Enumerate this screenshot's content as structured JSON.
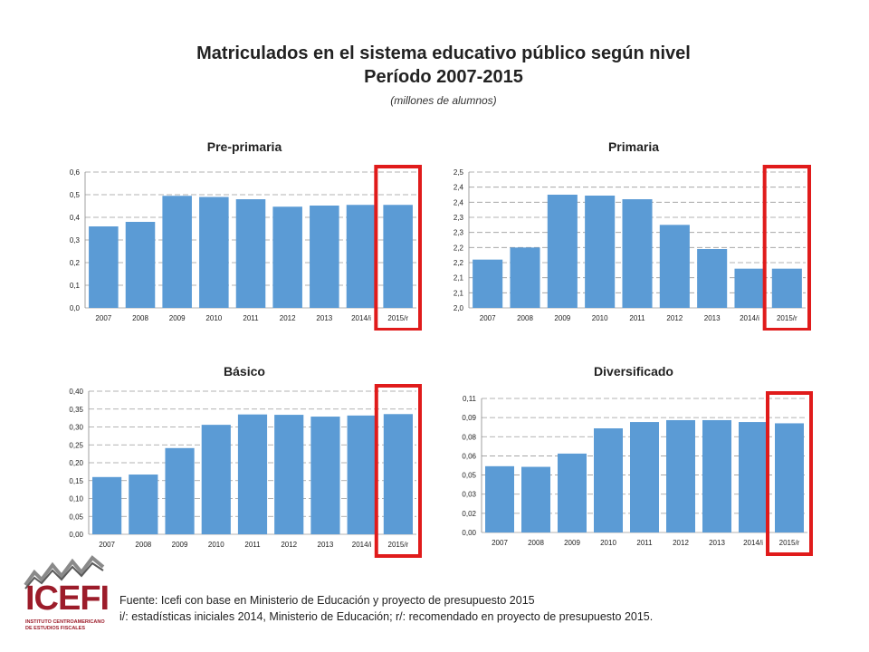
{
  "header": {
    "title": "Matriculados en el sistema educativo público según nivel",
    "subtitle": "Período 2007-2015",
    "units": "(millones de alumnos)"
  },
  "footer": {
    "source": "Fuente: Icefi con base en Ministerio de Educación y proyecto de presupuesto 2015",
    "note": "i/: estadísticas iniciales 2014, Ministerio de Educación; r/: recomendado en proyecto de presupuesto 2015."
  },
  "logo": {
    "name": "ICEFI",
    "subtitle": "INSTITUTO CENTROAMERICANO DE ESTUDIOS FISCALES",
    "icon": "zigzag-line-logo-icon"
  },
  "colors": {
    "bar": "#5b9bd5",
    "highlight": "#e01b1b",
    "logo": "#9c1c2a"
  },
  "chart_data": [
    {
      "type": "bar",
      "title": "Pre-primaria",
      "categories": [
        "2007",
        "2008",
        "2009",
        "2010",
        "2011",
        "2012",
        "2013",
        "2014/i",
        "2015/r"
      ],
      "values": [
        0.36,
        0.38,
        0.495,
        0.49,
        0.48,
        0.447,
        0.452,
        0.455,
        0.455
      ],
      "ylim": [
        0,
        0.6
      ],
      "yticks": [
        "0,0",
        "0,1",
        "0,2",
        "0,3",
        "0,4",
        "0,5",
        "0,6"
      ],
      "grid": true,
      "highlight_category": "2015/r"
    },
    {
      "type": "bar",
      "title": "Primaria",
      "categories": [
        "2007",
        "2008",
        "2009",
        "2010",
        "2011",
        "2012",
        "2013",
        "2014/i",
        "2015/r"
      ],
      "values": [
        2.16,
        2.2,
        2.375,
        2.372,
        2.36,
        2.275,
        2.195,
        2.13,
        2.13
      ],
      "ylim": [
        2.0,
        2.45
      ],
      "yticks": [
        "2,0",
        "2,1",
        "2,1",
        "2,2",
        "2,2",
        "2,3",
        "2,3",
        "2,4",
        "2,4",
        "2,5"
      ],
      "grid": true,
      "highlight_category": "2015/r"
    },
    {
      "type": "bar",
      "title": "Básico",
      "categories": [
        "2007",
        "2008",
        "2009",
        "2010",
        "2011",
        "2012",
        "2013",
        "2014/i",
        "2015/r"
      ],
      "values": [
        0.16,
        0.167,
        0.241,
        0.306,
        0.335,
        0.334,
        0.329,
        0.332,
        0.336
      ],
      "ylim": [
        0,
        0.4
      ],
      "yticks": [
        "0,00",
        "0,05",
        "0,10",
        "0,15",
        "0,20",
        "0,25",
        "0,30",
        "0,35",
        "0,40"
      ],
      "grid": true,
      "highlight_category": "2015/r"
    },
    {
      "type": "bar",
      "title": "Diversificado",
      "categories": [
        "2007",
        "2008",
        "2009",
        "2010",
        "2011",
        "2012",
        "2013",
        "2014/i",
        "2015/r"
      ],
      "values": [
        0.0525,
        0.052,
        0.0625,
        0.0825,
        0.0875,
        0.089,
        0.089,
        0.0875,
        0.0865
      ],
      "ylim": [
        0,
        0.1062
      ],
      "yticks": [
        "0,00",
        "0,02",
        "0,03",
        "0,05",
        "0,06",
        "0,08",
        "0,09",
        "0,11"
      ],
      "grid": true,
      "highlight_category": "2015/r"
    }
  ]
}
